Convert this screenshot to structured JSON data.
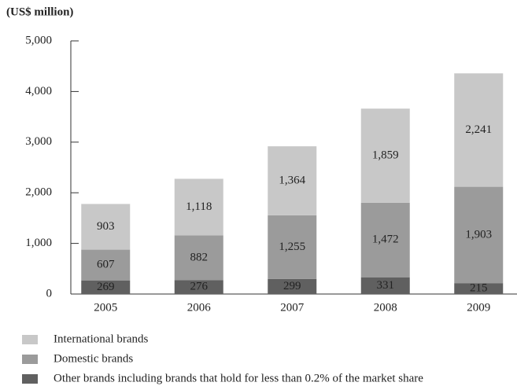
{
  "chart_data": {
    "type": "stacked_bar",
    "title": "(US$ million)",
    "categories": [
      "2005",
      "2006",
      "2007",
      "2008",
      "2009"
    ],
    "series": [
      {
        "name": "Other brands including brands that hold for less than 0.2% of the market share",
        "color": "#606060",
        "values": [
          269,
          276,
          299,
          331,
          215
        ],
        "value_labels": [
          "269",
          "276",
          "299",
          "331",
          "215"
        ]
      },
      {
        "name": "Domestic brands",
        "color": "#9b9b9b",
        "values": [
          607,
          882,
          1255,
          1472,
          1903
        ],
        "value_labels": [
          "607",
          "882",
          "1,255",
          "1,472",
          "1,903"
        ]
      },
      {
        "name": "International brands",
        "color": "#c8c8c8",
        "values": [
          903,
          1118,
          1364,
          1859,
          2241
        ],
        "value_labels": [
          "903",
          "1,118",
          "1,364",
          "1,859",
          "2,241"
        ]
      }
    ],
    "ylim": [
      0,
      5000
    ],
    "yticks": [
      0,
      {
        "value": 1000,
        "label": "1,000"
      },
      {
        "value": 2000,
        "label": "2,000"
      },
      {
        "value": 3000,
        "label": "3,000"
      },
      {
        "value": 4000,
        "label": "4,000"
      },
      {
        "value": 5000,
        "label": "5,000"
      }
    ]
  }
}
